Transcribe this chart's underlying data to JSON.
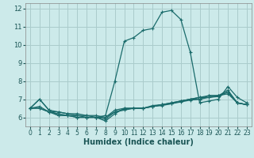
{
  "xlabel": "Humidex (Indice chaleur)",
  "bg_color": "#cceaea",
  "grid_color": "#aacccc",
  "line_color": "#1a6b6b",
  "series": [
    [
      6.5,
      7.0,
      6.4,
      6.1,
      6.1,
      6.0,
      6.0,
      6.0,
      6.1,
      8.0,
      10.2,
      10.4,
      10.8,
      10.9,
      11.8,
      11.9,
      11.4,
      9.6,
      6.8,
      6.9,
      7.0,
      7.7,
      7.1,
      6.8
    ],
    [
      6.5,
      7.0,
      6.4,
      6.3,
      6.2,
      6.1,
      6.0,
      6.0,
      5.8,
      6.2,
      6.5,
      6.5,
      6.5,
      6.6,
      6.7,
      6.75,
      6.9,
      7.0,
      7.1,
      7.2,
      7.2,
      7.3,
      6.8,
      6.7
    ],
    [
      6.5,
      6.6,
      6.3,
      6.1,
      6.1,
      6.0,
      6.0,
      6.0,
      5.9,
      6.3,
      6.45,
      6.5,
      6.5,
      6.6,
      6.65,
      6.75,
      6.85,
      6.95,
      7.0,
      7.1,
      7.15,
      7.4,
      6.8,
      6.7
    ],
    [
      6.5,
      6.5,
      6.3,
      6.3,
      6.2,
      6.2,
      6.1,
      6.1,
      6.0,
      6.3,
      6.4,
      6.5,
      6.5,
      6.6,
      6.7,
      6.8,
      6.9,
      7.0,
      7.1,
      7.1,
      7.2,
      7.5,
      6.8,
      6.7
    ],
    [
      6.5,
      6.5,
      6.3,
      6.2,
      6.1,
      6.1,
      6.1,
      6.0,
      6.0,
      6.4,
      6.5,
      6.5,
      6.5,
      6.65,
      6.7,
      6.8,
      6.9,
      7.0,
      7.0,
      7.2,
      7.2,
      7.4,
      6.8,
      6.7
    ]
  ],
  "xlim": [
    -0.5,
    23.5
  ],
  "ylim": [
    5.5,
    12.3
  ],
  "yticks": [
    6,
    7,
    8,
    9,
    10,
    11,
    12
  ],
  "xticks": [
    0,
    1,
    2,
    3,
    4,
    5,
    6,
    7,
    8,
    9,
    10,
    11,
    12,
    13,
    14,
    15,
    16,
    17,
    18,
    19,
    20,
    21,
    22,
    23
  ],
  "xlabel_color": "#1a5555",
  "tick_color": "#1a5555",
  "xlabel_fontsize": 7,
  "tick_fontsize": 5.5
}
